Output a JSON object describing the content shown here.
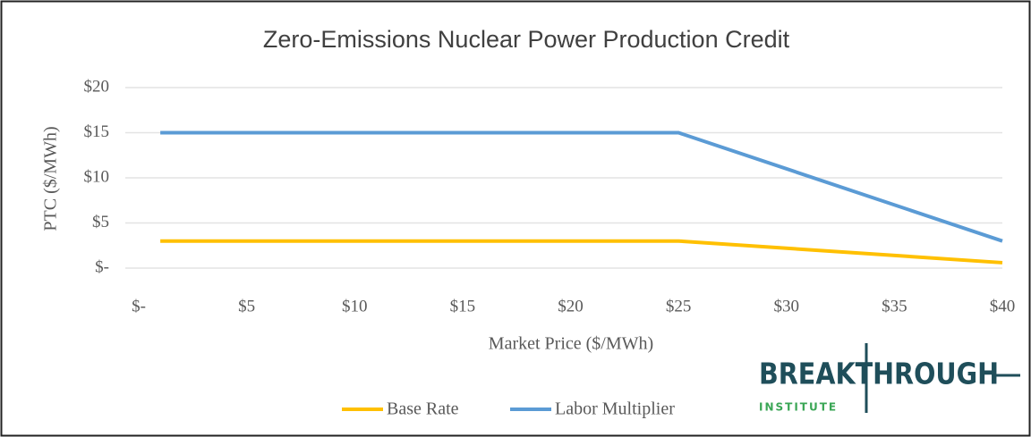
{
  "chart_data": {
    "type": "line",
    "title": "Zero-Emissions Nuclear Power Production Credit",
    "x_label": "Market Price ($/MWh)",
    "y_label": "PTC ($/MWh)",
    "x": [
      1,
      25,
      40
    ],
    "series": [
      {
        "name": "Base Rate",
        "color": "#ffc000",
        "values": [
          3,
          3,
          0.6
        ]
      },
      {
        "name": "Labor Multiplier",
        "color": "#5b9bd5",
        "values": [
          15,
          15,
          3
        ]
      }
    ],
    "xlim": [
      0,
      40
    ],
    "xticks": [
      {
        "value": 0,
        "label": "$-"
      },
      {
        "value": 5,
        "label": "$5"
      },
      {
        "value": 10,
        "label": "$10"
      },
      {
        "value": 15,
        "label": "$15"
      },
      {
        "value": 20,
        "label": "$20"
      },
      {
        "value": 25,
        "label": "$25"
      },
      {
        "value": 30,
        "label": "$30"
      },
      {
        "value": 35,
        "label": "$35"
      },
      {
        "value": 40,
        "label": "$40"
      }
    ],
    "ylim": [
      0,
      20
    ],
    "yticks": [
      {
        "value": 0,
        "label": "$-"
      },
      {
        "value": 5,
        "label": "$5"
      },
      {
        "value": 10,
        "label": "$10"
      },
      {
        "value": 15,
        "label": "$15"
      },
      {
        "value": 20,
        "label": "$20"
      }
    ],
    "grid": true,
    "legend": "bottom"
  },
  "logo": {
    "name": "BREAKTHROUGH",
    "sub": "INSTITUTE"
  }
}
